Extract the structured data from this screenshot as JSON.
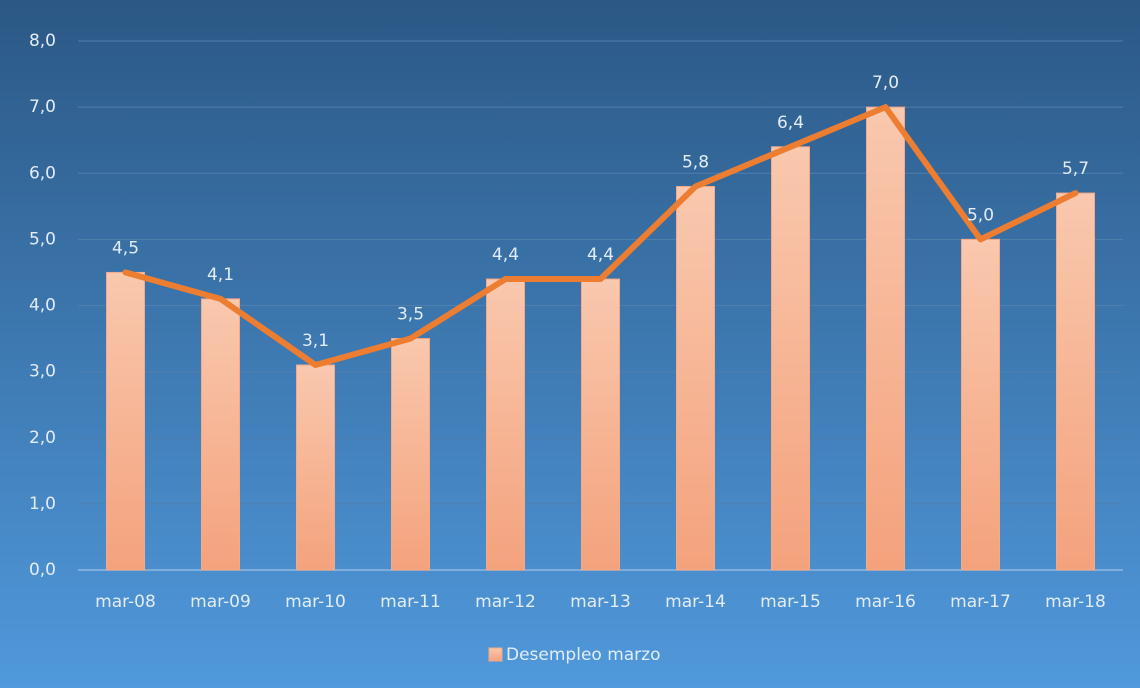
{
  "chart_data": {
    "type": "bar",
    "categories": [
      "mar-08",
      "mar-09",
      "mar-10",
      "mar-11",
      "mar-12",
      "mar-13",
      "mar-14",
      "mar-15",
      "mar-16",
      "mar-17",
      "mar-18"
    ],
    "series": [
      {
        "name": "Desempleo marzo",
        "color": "#f5a987",
        "values": [
          4.5,
          4.1,
          3.1,
          3.5,
          4.4,
          4.4,
          5.8,
          6.4,
          7.0,
          5.0,
          5.7
        ],
        "value_labels": [
          "4,5",
          "4,1",
          "3,1",
          "3,5",
          "4,4",
          "4,4",
          "5,8",
          "6,4",
          "7,0",
          "5,0",
          "5,7"
        ]
      }
    ],
    "line_overlay": true,
    "line_color": "#ed7d31",
    "ylim": [
      0,
      8
    ],
    "yticks": [
      {
        "value": 0,
        "label": "0,0"
      },
      {
        "value": 1,
        "label": "1,0"
      },
      {
        "value": 2,
        "label": "2,0"
      },
      {
        "value": 3,
        "label": "3,0"
      },
      {
        "value": 4,
        "label": "4,0"
      },
      {
        "value": 5,
        "label": "5,0"
      },
      {
        "value": 6,
        "label": "6,0"
      },
      {
        "value": 7,
        "label": "7,0"
      },
      {
        "value": 8,
        "label": "8,0"
      }
    ],
    "grid": true,
    "legend": "bottom"
  }
}
